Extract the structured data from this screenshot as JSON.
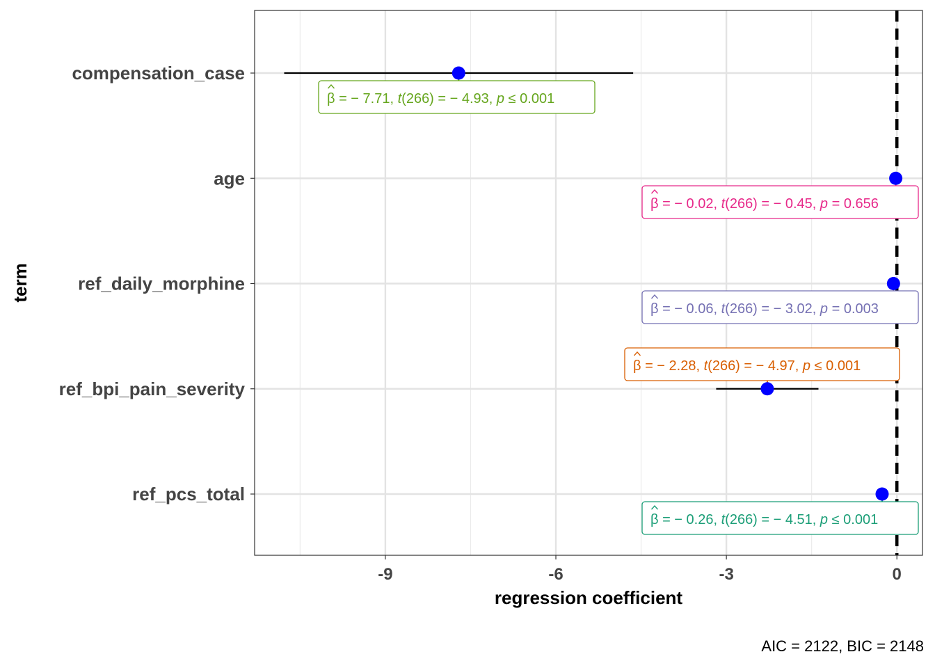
{
  "chart_data": {
    "type": "scatter",
    "subtype": "coefficient-plot",
    "xlabel": "regression coefficient",
    "ylabel": "term",
    "xlim": [
      -11.3,
      0.45
    ],
    "x_ticks": [
      -9,
      -6,
      -3,
      0
    ],
    "x_tick_labels": [
      "-9",
      "-6",
      "-3",
      "0"
    ],
    "reference_line": 0,
    "grid": true,
    "point_color": "#0000FF",
    "caption": "AIC = 2122, BIC = 2148",
    "terms": [
      {
        "term": "compensation_case",
        "estimate": -7.71,
        "ci_low": -10.78,
        "ci_high": -4.64,
        "color": "#66A61E",
        "label": {
          "beta": "− 7.71,",
          "t": "− 4.93,",
          "p_op": "≤",
          "p": "0.001"
        }
      },
      {
        "term": "age",
        "estimate": -0.02,
        "ci_low": -0.11,
        "ci_high": 0.07,
        "color": "#E7298A",
        "label": {
          "beta": "− 0.02,",
          "t": "− 0.45,",
          "p_op": "=",
          "p": "0.656"
        }
      },
      {
        "term": "ref_daily_morphine",
        "estimate": -0.06,
        "ci_low": -0.1,
        "ci_high": -0.02,
        "color": "#7570B3",
        "label": {
          "beta": "− 0.06,",
          "t": "− 3.02,",
          "p_op": "=",
          "p": "0.003"
        }
      },
      {
        "term": "ref_bpi_pain_severity",
        "estimate": -2.28,
        "ci_low": -3.18,
        "ci_high": -1.38,
        "color": "#D95F02",
        "label": {
          "beta": "− 2.28,",
          "t": "− 4.97,",
          "p_op": "≤",
          "p": "0.001"
        }
      },
      {
        "term": "ref_pcs_total",
        "estimate": -0.26,
        "ci_low": -0.37,
        "ci_high": -0.15,
        "color": "#1B9E77",
        "label": {
          "beta": "− 0.26,",
          "t": "− 4.51,",
          "p_op": "≤",
          "p": "0.001"
        }
      }
    ],
    "df": "266"
  }
}
